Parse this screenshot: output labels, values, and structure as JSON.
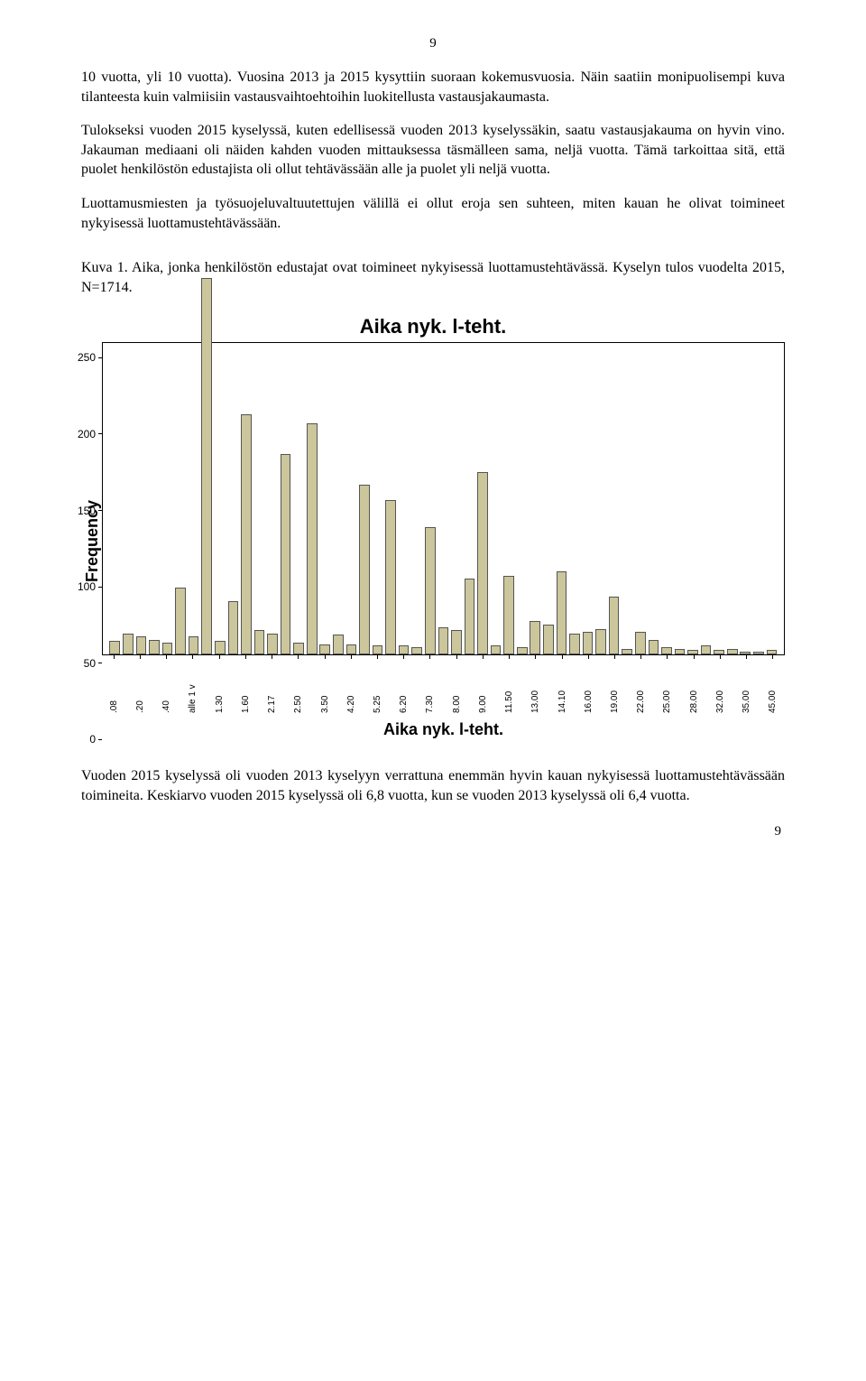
{
  "page": {
    "top_number": "9",
    "bottom_number": "9"
  },
  "paragraphs": {
    "p1": "10 vuotta, yli 10 vuotta). Vuosina 2013 ja 2015 kysyttiin suoraan kokemusvuosia. Näin saatiin monipuolisempi kuva tilanteesta kuin valmiisiin vastausvaihtoehtoihin luokitellusta vastausjakaumasta.",
    "p2": "Tulokseksi vuoden 2015 kyselyssä, kuten edellisessä vuoden 2013 kyselyssäkin, saatu vastausjakauma on hyvin vino. Jakauman mediaani oli näiden kahden vuoden mittauksessa täsmälleen sama, neljä vuotta. Tämä tarkoittaa sitä, että puolet henkilöstön edustajista oli ollut tehtävässään alle ja puolet yli neljä vuotta.",
    "p3": "Luottamusmiesten ja työsuojeluvaltuutettujen välillä ei ollut eroja sen suhteen, miten kauan he olivat toimineet nykyisessä luottamustehtävässään.",
    "caption": "Kuva 1. Aika, jonka henkilöstön edustajat ovat toimineet nykyisessä luottamustehtävässä. Kyselyn tulos vuodelta 2015, N=1714.",
    "p4": "Vuoden 2015 kyselyssä oli vuoden 2013 kyselyyn verrattuna enemmän hyvin kauan nykyisessä luottamustehtävässään toimineita. Keskiarvo vuoden 2015 kyselyssä oli 6,8 vuotta, kun se vuoden 2013 kyselyssä oli 6,4 vuotta."
  },
  "chart": {
    "type": "histogram",
    "title": "Aika nyk. l-teht.",
    "xlabel": "Aika nyk. l-teht.",
    "ylabel": "Frequency",
    "ylim_max": 260,
    "yticks": [
      0,
      50,
      100,
      150,
      200,
      250
    ],
    "background_color": "#ffffff",
    "bar_color": "#cbc69b",
    "bar_border_color": "#555555",
    "frame_color": "#000000",
    "title_fontsize": 22,
    "label_fontsize": 18,
    "tick_fontsize": 11,
    "bars": [
      {
        "label": ".08",
        "value": 9,
        "show_label": true
      },
      {
        "label": "",
        "value": 14,
        "show_label": false
      },
      {
        "label": ".20",
        "value": 12,
        "show_label": true
      },
      {
        "label": "",
        "value": 10,
        "show_label": false
      },
      {
        "label": ".40",
        "value": 8,
        "show_label": true
      },
      {
        "label": "",
        "value": 44,
        "show_label": false
      },
      {
        "label": "alle 1 v",
        "value": 12,
        "show_label": true
      },
      {
        "label": "",
        "value": 248,
        "show_label": false
      },
      {
        "label": "1.30",
        "value": 9,
        "show_label": true
      },
      {
        "label": "",
        "value": 35,
        "show_label": false
      },
      {
        "label": "1.60",
        "value": 158,
        "show_label": true
      },
      {
        "label": "",
        "value": 16,
        "show_label": false
      },
      {
        "label": "2.17",
        "value": 14,
        "show_label": true
      },
      {
        "label": "",
        "value": 132,
        "show_label": false
      },
      {
        "label": "2.50",
        "value": 8,
        "show_label": true
      },
      {
        "label": "",
        "value": 152,
        "show_label": false
      },
      {
        "label": "3.50",
        "value": 7,
        "show_label": true
      },
      {
        "label": "",
        "value": 13,
        "show_label": false
      },
      {
        "label": "4.20",
        "value": 7,
        "show_label": true
      },
      {
        "label": "",
        "value": 112,
        "show_label": false
      },
      {
        "label": "5.25",
        "value": 6,
        "show_label": true
      },
      {
        "label": "",
        "value": 102,
        "show_label": false
      },
      {
        "label": "6.20",
        "value": 6,
        "show_label": true
      },
      {
        "label": "",
        "value": 5,
        "show_label": false
      },
      {
        "label": "7.30",
        "value": 84,
        "show_label": true
      },
      {
        "label": "",
        "value": 18,
        "show_label": false
      },
      {
        "label": "8.00",
        "value": 16,
        "show_label": true
      },
      {
        "label": "",
        "value": 50,
        "show_label": false
      },
      {
        "label": "9.00",
        "value": 120,
        "show_label": true
      },
      {
        "label": "",
        "value": 6,
        "show_label": false
      },
      {
        "label": "11.50",
        "value": 52,
        "show_label": true
      },
      {
        "label": "",
        "value": 5,
        "show_label": false
      },
      {
        "label": "13.00",
        "value": 22,
        "show_label": true
      },
      {
        "label": "",
        "value": 20,
        "show_label": false
      },
      {
        "label": "14.10",
        "value": 55,
        "show_label": true
      },
      {
        "label": "",
        "value": 14,
        "show_label": false
      },
      {
        "label": "16.00",
        "value": 15,
        "show_label": true
      },
      {
        "label": "",
        "value": 17,
        "show_label": false
      },
      {
        "label": "19.00",
        "value": 38,
        "show_label": true
      },
      {
        "label": "",
        "value": 4,
        "show_label": false
      },
      {
        "label": "22.00",
        "value": 15,
        "show_label": true
      },
      {
        "label": "",
        "value": 10,
        "show_label": false
      },
      {
        "label": "25.00",
        "value": 5,
        "show_label": true
      },
      {
        "label": "",
        "value": 4,
        "show_label": false
      },
      {
        "label": "28.00",
        "value": 3,
        "show_label": true
      },
      {
        "label": "",
        "value": 6,
        "show_label": false
      },
      {
        "label": "32.00",
        "value": 3,
        "show_label": true
      },
      {
        "label": "",
        "value": 4,
        "show_label": false
      },
      {
        "label": "35.00",
        "value": 2,
        "show_label": true
      },
      {
        "label": "",
        "value": 2,
        "show_label": false
      },
      {
        "label": "45.00",
        "value": 3,
        "show_label": true
      }
    ]
  }
}
